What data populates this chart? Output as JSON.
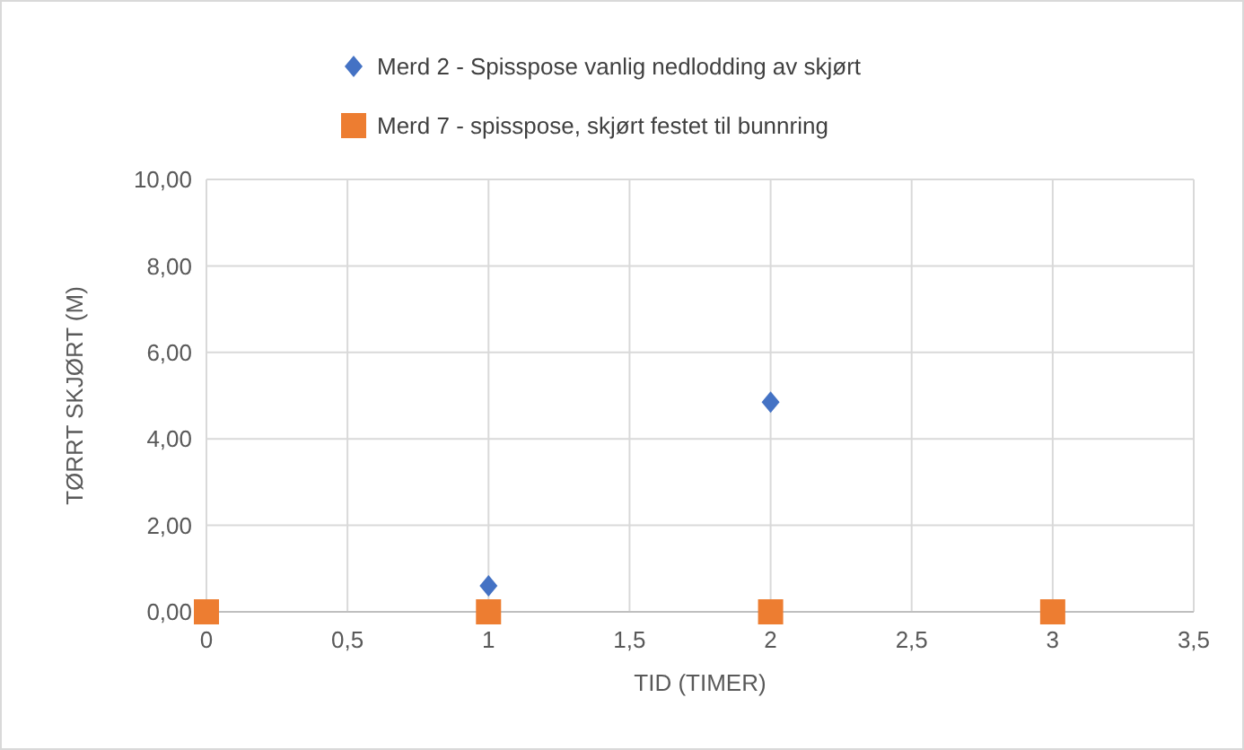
{
  "chart_data": {
    "type": "scatter",
    "xlabel": "TID (TIMER)",
    "ylabel": "TØRRT SKJØRT (M)",
    "series": [
      {
        "name": "Merd 2 - Spisspose vanlig nedlodding av skjørt",
        "color": "#4472c4",
        "marker": "diamond",
        "x": [
          1,
          2
        ],
        "values": [
          0.6,
          4.85
        ]
      },
      {
        "name": "Merd 7 - spisspose, skjørt festet til bunnring",
        "color": "#ed7d31",
        "marker": "square",
        "x": [
          0,
          1,
          2,
          3
        ],
        "values": [
          0,
          0,
          0,
          0
        ]
      }
    ],
    "xlim": [
      0,
      3.5
    ],
    "xticks": [
      0,
      {
        "value": 0.5,
        "label": "0,5"
      },
      1,
      {
        "value": 1.5,
        "label": "1,5"
      },
      2,
      {
        "value": 2.5,
        "label": "2,5"
      },
      3,
      {
        "value": 3.5,
        "label": "3,5"
      }
    ],
    "ylim": [
      0,
      10
    ],
    "yticks": [
      {
        "value": 0,
        "label": "0,00"
      },
      {
        "value": 2,
        "label": "2,00"
      },
      {
        "value": 4,
        "label": "4,00"
      },
      {
        "value": 6,
        "label": "6,00"
      },
      {
        "value": 8,
        "label": "8,00"
      },
      {
        "value": 10,
        "label": "10,00"
      }
    ],
    "grid": true,
    "legend": "top"
  }
}
